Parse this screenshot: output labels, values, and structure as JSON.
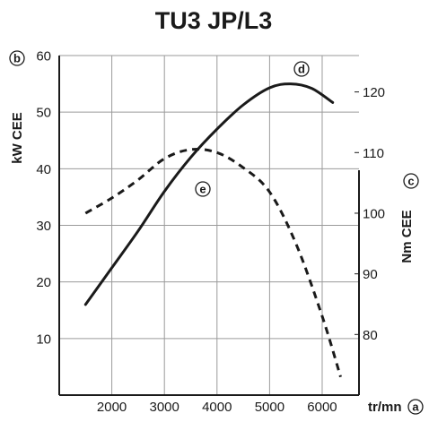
{
  "chart_data": {
    "type": "line",
    "title": "TU3 JP/L3",
    "xlabel": "tr/mn",
    "ylabel_left": "kW CEE",
    "ylabel_right": "Nm CEE",
    "markers": {
      "x_axis": "a",
      "left_axis": "b",
      "right_axis": "c",
      "power": "d",
      "torque": "e"
    },
    "x_ticks": [
      2000,
      3000,
      4000,
      5000,
      6000
    ],
    "y_left_ticks": [
      10,
      20,
      30,
      40,
      50,
      60
    ],
    "y_right_ticks": [
      80,
      90,
      100,
      110,
      120
    ],
    "xlim": [
      1000,
      6700
    ],
    "ylim_left": [
      0,
      60
    ],
    "ylim_right": [
      70,
      126
    ],
    "grid": true,
    "series": [
      {
        "marker": "d",
        "axis": "left",
        "style": "solid",
        "x": [
          1500,
          2000,
          2500,
          3000,
          3500,
          4000,
          4500,
          5000,
          5400,
          5800,
          6200
        ],
        "values": [
          16,
          22.5,
          29,
          36,
          42,
          47,
          51.3,
          54.3,
          55,
          54.2,
          51.7
        ]
      },
      {
        "marker": "e",
        "axis": "right",
        "style": "dashed",
        "x": [
          1500,
          2000,
          2500,
          3000,
          3500,
          4000,
          4500,
          5000,
          5500,
          6000,
          6350
        ],
        "values": [
          100,
          102.5,
          105.5,
          109,
          110.5,
          110,
          107.5,
          103.5,
          95,
          83,
          73
        ]
      }
    ]
  }
}
